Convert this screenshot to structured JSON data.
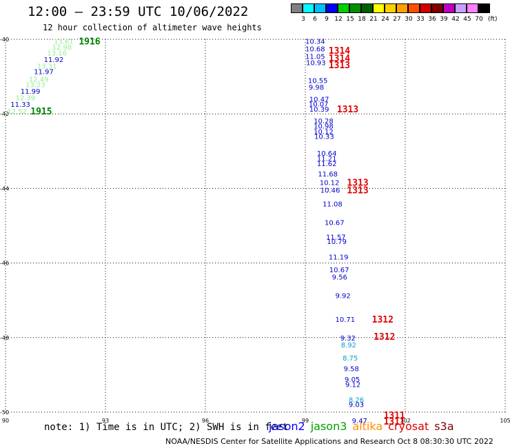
{
  "header": {
    "title": "12:00 – 23:59 UTC 10/06/2022",
    "subtitle": "12 hour collection of altimeter wave heights"
  },
  "color_scale": {
    "labels": [
      "3",
      "6",
      "9",
      "12",
      "15",
      "18",
      "21",
      "24",
      "27",
      "30",
      "33",
      "36",
      "39",
      "42",
      "45",
      "70"
    ],
    "unit": "(ft)",
    "colors": [
      "#808080",
      "#00ffff",
      "#00bfff",
      "#0000ff",
      "#00d000",
      "#009000",
      "#006000",
      "#ffff00",
      "#ffd000",
      "#ffa000",
      "#ff5000",
      "#d00000",
      "#800000",
      "#c000c0",
      "#c8a0ff",
      "#ff80ff",
      "#000000"
    ]
  },
  "map": {
    "lat_labels": [
      "-40",
      "-42",
      "-44",
      "-46",
      "-48",
      "-50"
    ],
    "lon_labels": [
      "90",
      "93",
      "96",
      "99",
      "102",
      "105"
    ]
  },
  "observations": [
    {
      "v": "10.34",
      "c": "#0000cc",
      "lon": 99.0,
      "lat": -40.05
    },
    {
      "v": "10.68",
      "c": "#0000cc",
      "lon": 99.0,
      "lat": -40.25
    },
    {
      "v": "11.05",
      "c": "#0000cc",
      "lon": 99.0,
      "lat": -40.45
    },
    {
      "v": "10.93",
      "c": "#0000cc",
      "lon": 99.02,
      "lat": -40.62
    },
    {
      "v": "10.55",
      "c": "#0000cc",
      "lon": 99.08,
      "lat": -41.1
    },
    {
      "v": "9.98",
      "c": "#0000cc",
      "lon": 99.1,
      "lat": -41.28
    },
    {
      "v": "10.47",
      "c": "#0000cc",
      "lon": 99.12,
      "lat": -41.6
    },
    {
      "v": "10.07",
      "c": "#0000cc",
      "lon": 99.1,
      "lat": -41.73
    },
    {
      "v": "10.39",
      "c": "#0000cc",
      "lon": 99.12,
      "lat": -41.87
    },
    {
      "v": "10.28",
      "c": "#0000cc",
      "lon": 99.25,
      "lat": -42.18
    },
    {
      "v": "10.98",
      "c": "#0000cc",
      "lon": 99.25,
      "lat": -42.32
    },
    {
      "v": "10.12",
      "c": "#0000cc",
      "lon": 99.25,
      "lat": -42.47
    },
    {
      "v": "10.33",
      "c": "#0000cc",
      "lon": 99.27,
      "lat": -42.6
    },
    {
      "v": "10.64",
      "c": "#0000cc",
      "lon": 99.35,
      "lat": -43.05
    },
    {
      "v": "11.21",
      "c": "#0000cc",
      "lon": 99.35,
      "lat": -43.19
    },
    {
      "v": "11.62",
      "c": "#0000cc",
      "lon": 99.35,
      "lat": -43.33
    },
    {
      "v": "11.68",
      "c": "#0000cc",
      "lon": 99.38,
      "lat": -43.6
    },
    {
      "v": "10.12",
      "c": "#0000cc",
      "lon": 99.43,
      "lat": -43.84
    },
    {
      "v": "10.46",
      "c": "#0000cc",
      "lon": 99.45,
      "lat": -44.04
    },
    {
      "v": "11.08",
      "c": "#0000cc",
      "lon": 99.52,
      "lat": -44.41
    },
    {
      "v": "10.67",
      "c": "#0000cc",
      "lon": 99.58,
      "lat": -44.91
    },
    {
      "v": "11.57",
      "c": "#0000cc",
      "lon": 99.62,
      "lat": -45.3
    },
    {
      "v": "10.79",
      "c": "#0000cc",
      "lon": 99.65,
      "lat": -45.42
    },
    {
      "v": "11.19",
      "c": "#0000cc",
      "lon": 99.7,
      "lat": -45.83
    },
    {
      "v": "10.67",
      "c": "#0000cc",
      "lon": 99.72,
      "lat": -46.17
    },
    {
      "v": "9.56",
      "c": "#0000cc",
      "lon": 99.8,
      "lat": -46.37
    },
    {
      "v": "9.92",
      "c": "#0000cc",
      "lon": 99.9,
      "lat": -46.87
    },
    {
      "v": "10.71",
      "c": "#0000cc",
      "lon": 99.9,
      "lat": -47.5
    },
    {
      "v": "9.32",
      "c": "#0000cc",
      "lon": 100.05,
      "lat": -48.0
    },
    {
      "v": "8.92",
      "c": "#00a0d0",
      "lon": 100.07,
      "lat": -48.19
    },
    {
      "v": "8.75",
      "c": "#00a0d0",
      "lon": 100.12,
      "lat": -48.54
    },
    {
      "v": "9.58",
      "c": "#0000cc",
      "lon": 100.15,
      "lat": -48.83
    },
    {
      "v": "9.05",
      "c": "#0000cc",
      "lon": 100.18,
      "lat": -49.11
    },
    {
      "v": "9.12",
      "c": "#0000cc",
      "lon": 100.2,
      "lat": -49.25
    },
    {
      "v": "8.26",
      "c": "#00a0d0",
      "lon": 100.3,
      "lat": -49.66
    },
    {
      "v": "9.03",
      "c": "#0000cc",
      "lon": 100.3,
      "lat": -49.79
    },
    {
      "v": "9.47",
      "c": "#0000cc",
      "lon": 100.4,
      "lat": -50.22
    },
    {
      "v": "13.61",
      "c": "#90ee90",
      "lon": 91.45,
      "lat": -40.05
    },
    {
      "v": "12.98",
      "c": "#90ee90",
      "lon": 91.4,
      "lat": -40.2
    },
    {
      "v": "13.16",
      "c": "#90ee90",
      "lon": 91.25,
      "lat": -40.36
    },
    {
      "v": "11.92",
      "c": "#0000cc",
      "lon": 91.15,
      "lat": -40.54
    },
    {
      "v": "13.31",
      "c": "#90ee90",
      "lon": 90.95,
      "lat": -40.71
    },
    {
      "v": "11.97",
      "c": "#0000cc",
      "lon": 90.85,
      "lat": -40.86
    },
    {
      "v": "12.49",
      "c": "#90ee90",
      "lon": 90.7,
      "lat": -41.06
    },
    {
      "v": "13.23",
      "c": "#90ee90",
      "lon": 90.6,
      "lat": -41.21
    },
    {
      "v": "11.99",
      "c": "#0000cc",
      "lon": 90.45,
      "lat": -41.39
    },
    {
      "v": "12.39",
      "c": "#90ee90",
      "lon": 90.3,
      "lat": -41.56
    },
    {
      "v": "11.33",
      "c": "#0000cc",
      "lon": 90.15,
      "lat": -41.74
    },
    {
      "v": "12.52",
      "c": "#90ee90",
      "lon": 90.05,
      "lat": -41.92
    }
  ],
  "passes": [
    {
      "label": "1916",
      "c": "#008000",
      "lon": 92.2,
      "lat": -40.05
    },
    {
      "label": "1915",
      "c": "#008000",
      "lon": 90.75,
      "lat": -41.92
    },
    {
      "label": "1314",
      "c": "#e00000",
      "lon": 99.7,
      "lat": -40.3
    },
    {
      "label": "1314",
      "c": "#e00000",
      "lon": 99.7,
      "lat": -40.5
    },
    {
      "label": "1313",
      "c": "#e00000",
      "lon": 99.7,
      "lat": -40.68
    },
    {
      "label": "1313",
      "c": "#e00000",
      "lon": 99.95,
      "lat": -41.87
    },
    {
      "label": "1313",
      "c": "#e00000",
      "lon": 100.25,
      "lat": -43.84
    },
    {
      "label": "1313",
      "c": "#e00000",
      "lon": 100.25,
      "lat": -44.04
    },
    {
      "label": "1312",
      "c": "#e00000",
      "lon": 101.0,
      "lat": -47.5
    },
    {
      "label": "1312",
      "c": "#e00000",
      "lon": 101.05,
      "lat": -47.97
    },
    {
      "label": "1311",
      "c": "#e00000",
      "lon": 101.35,
      "lat": -50.07
    },
    {
      "label": "1311",
      "c": "#e00000",
      "lon": 101.35,
      "lat": -50.24
    }
  ],
  "footer": {
    "note": "note: 1) Time is in UTC; 2) SWH is in feet",
    "legend": [
      {
        "label": "jason2",
        "color": "#0000ff"
      },
      {
        "label": "jason3",
        "color": "#00a000"
      },
      {
        "label": "altika",
        "color": "#ff8c00"
      },
      {
        "label": "cryosat",
        "color": "#e00000"
      },
      {
        "label": "s3a",
        "color": "#800000"
      }
    ],
    "credit": "NOAA/NESDIS Center for Satellite Applications and Research   Oct  8 08:30:30 UTC 2022"
  }
}
